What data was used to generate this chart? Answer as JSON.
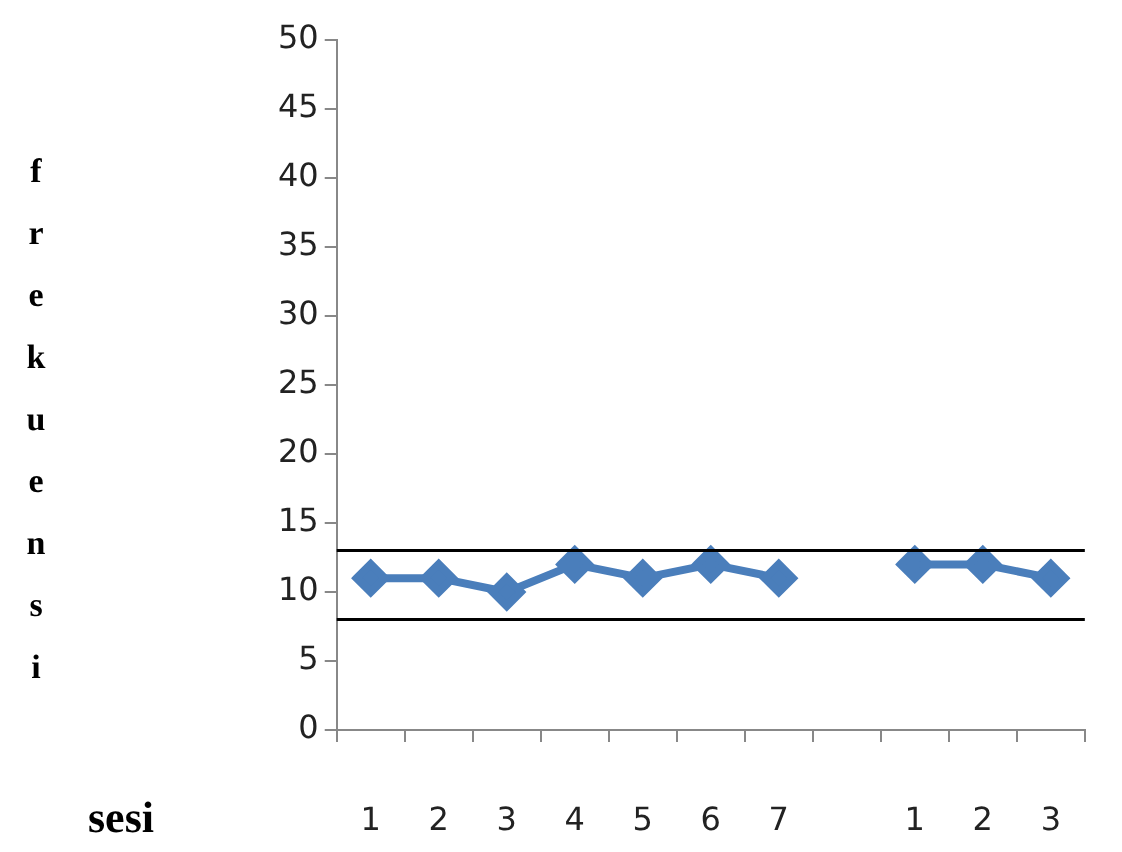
{
  "chart_data": {
    "type": "line",
    "xlabel": "sesi",
    "ylabel": "frekuensi",
    "categories": [
      "1",
      "2",
      "3",
      "4",
      "5",
      "6",
      "7",
      null,
      "1",
      "2",
      "3"
    ],
    "series": [
      {
        "color": "#4a7ebb",
        "values": [
          11,
          11,
          10,
          12,
          11,
          12,
          11,
          null,
          12,
          12,
          11
        ]
      }
    ],
    "ylim": [
      0,
      50
    ],
    "yticks": [
      0,
      5,
      10,
      15,
      20,
      25,
      30,
      35,
      40,
      45,
      50
    ],
    "ref_lines": [
      {
        "axis": "y",
        "value": 13,
        "color": "#000000"
      },
      {
        "axis": "y",
        "value": 8,
        "color": "#000000"
      }
    ],
    "grid": false,
    "legend": false,
    "marker": "diamond",
    "line_style": "solid"
  }
}
